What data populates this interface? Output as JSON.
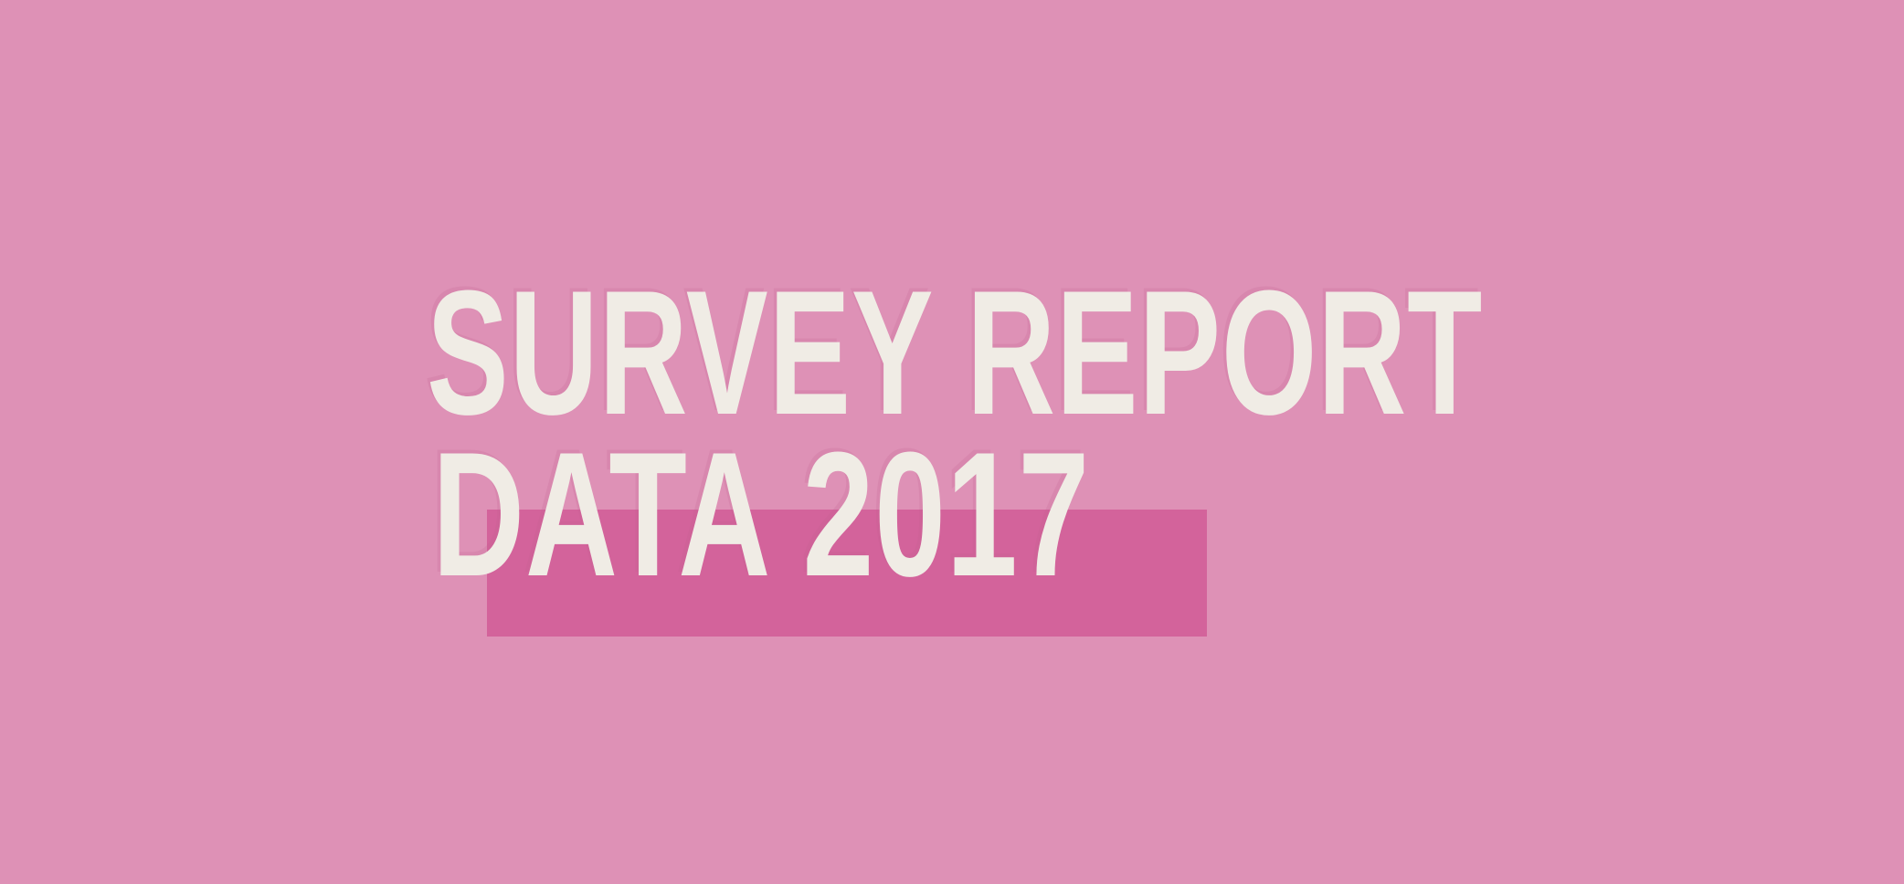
{
  "page": {
    "type": "report-cover-slide",
    "title_line1": "SURVEY REPORT",
    "title_line2": "DATA 2017"
  },
  "colors": {
    "background": "#DE91B6",
    "highlight_bar": "#D3639B",
    "title_text": "#F0ECE5"
  }
}
